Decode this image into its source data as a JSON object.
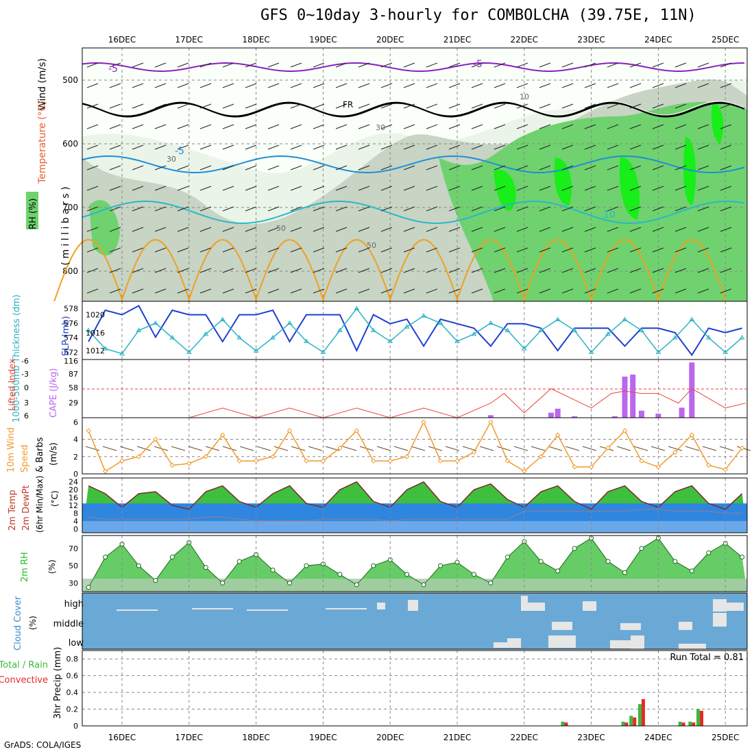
{
  "title": "GFS 0~10day 3-hourly for COMBOLCHA (39.75E, 11N)",
  "credit": "GrADS: COLA/IGES",
  "dates": [
    "16DEC",
    "17DEC",
    "18DEC",
    "19DEC",
    "20DEC",
    "21DEC",
    "22DEC",
    "23DEC",
    "24DEC",
    "25DEC"
  ],
  "colors": {
    "rh_light": "#eaf4e8",
    "rh_mid": "#c8d4c4",
    "rh_green": "#6fd26f",
    "rh_bright": "#18ee18",
    "slp": "#1d3fcf",
    "thickness": "#2ab3c2",
    "li": "#e8453c",
    "cape": "#bb66ee",
    "wind": "#ef9a2a",
    "temp_fill": "#3ebf3e",
    "temp_warm": "#f4f47a",
    "dew": "#1c7fdc",
    "rh2m": "#22c022",
    "cloud_bg": "#6aa9d6",
    "cloud_box": "#e6e6e6",
    "precip_total": "#3cb83c",
    "precip_conv": "#e82828"
  },
  "panels": {
    "upper": {
      "ylabel_wind": "Wind (m/s)",
      "ylabel_temp": "Temperature (°C)",
      "ylabel_rh": "RH (%)",
      "ylabel_mb": "( m i l l i b a r s )",
      "yticks": [
        "500",
        "600",
        "700",
        "800"
      ],
      "contour_labels": [
        "-5",
        "-5",
        "FR",
        "-5",
        "10",
        "30",
        "30",
        "10",
        "50",
        "50"
      ]
    },
    "slp": {
      "ylabel_left": "1000-500mb Thickness (dm)",
      "ylabel_right": "SLP (mb)",
      "yticks_left": [
        "578",
        "576",
        "574",
        "572"
      ],
      "yticks_right": [
        "1020",
        "1016",
        "1012"
      ]
    },
    "li": {
      "ylabel_left": "Lifted Index",
      "ylabel_right": "CAPE (J/kg)",
      "yticks_left": [
        "-6",
        "-3",
        "0",
        "3",
        "6"
      ],
      "yticks_right": [
        "116",
        "87",
        "58",
        "29"
      ]
    },
    "wind": {
      "ylabel_1": "10m Wind",
      "ylabel_2": "Speed",
      "ylabel_3": "& Barbs",
      "ylabel_4": "(m/s)",
      "yticks": [
        "6",
        "4",
        "2",
        "0"
      ]
    },
    "temp": {
      "ylabel_1": "2m Temp",
      "ylabel_2": "2m DewPt",
      "ylabel_3": "(6hr Min/Max)",
      "ylabel_4": "(°C)",
      "yticks": [
        "24",
        "20",
        "16",
        "12",
        "8",
        "4",
        "0"
      ]
    },
    "rh2m": {
      "ylabel_1": "2m RH",
      "ylabel_2": "(%)",
      "yticks": [
        "70",
        "50",
        "30"
      ]
    },
    "cloud": {
      "ylabel_1": "Cloud Cover",
      "ylabel_2": "(%)",
      "levels": [
        "high",
        "middle",
        "low"
      ]
    },
    "precip": {
      "ylabel_1": "Total / Rain",
      "ylabel_2": "Convective",
      "ylabel_3": "3hr Precip (mm)",
      "yticks": [
        "0.8",
        "0.6",
        "0.4",
        "0.2",
        "0"
      ],
      "run_total": "Run Total = 0.81"
    }
  },
  "chart_data": [
    {
      "type": "line",
      "name": "SLP",
      "title": "Sea level pressure (mb)",
      "ylim": [
        1010,
        1023
      ],
      "x_days": [
        15.5,
        15.75,
        16.0,
        16.25,
        16.5,
        16.75,
        17.0,
        17.25,
        17.5,
        17.75,
        18.0,
        18.25,
        18.5,
        18.75,
        19.0,
        19.25,
        19.5,
        19.75,
        20.0,
        20.25,
        20.5,
        20.75,
        21.0,
        21.25,
        21.5,
        21.75,
        22.0,
        22.25,
        22.5,
        22.75,
        23.0,
        23.25,
        23.5,
        23.75,
        24.0,
        24.25,
        24.5,
        24.75,
        25.0,
        25.25
      ],
      "values": [
        1014,
        1021,
        1020,
        1022,
        1015,
        1021,
        1020,
        1020,
        1014,
        1020,
        1020,
        1021,
        1014,
        1020,
        1020,
        1020,
        1012,
        1020,
        1018,
        1019,
        1013,
        1019,
        1018,
        1017,
        1013,
        1018,
        1018,
        1017,
        1012,
        1017,
        1017,
        1017,
        1013,
        1017,
        1017,
        1016,
        1011,
        1017,
        1016,
        1017
      ]
    },
    {
      "type": "line",
      "name": "1000-500mb Thickness",
      "ylim": [
        571,
        579
      ],
      "x_days": [
        15.5,
        15.75,
        16.0,
        16.25,
        16.5,
        16.75,
        17.0,
        17.25,
        17.5,
        17.75,
        18.0,
        18.25,
        18.5,
        18.75,
        19.0,
        19.25,
        19.5,
        19.75,
        20.0,
        20.25,
        20.5,
        20.75,
        21.0,
        21.25,
        21.5,
        21.75,
        22.0,
        22.25,
        22.5,
        22.75,
        23.0,
        23.25,
        23.5,
        23.75,
        24.0,
        24.25,
        24.5,
        24.75,
        25.0,
        25.25
      ],
      "values": [
        575,
        572.5,
        571.8,
        575,
        576,
        574,
        572,
        574.5,
        576.5,
        574,
        572.2,
        574,
        576,
        573.5,
        572,
        575,
        578,
        575,
        573.5,
        575.5,
        577,
        576,
        573.5,
        574.5,
        576,
        575,
        572.5,
        575,
        576.5,
        575,
        572,
        574.5,
        576.5,
        575,
        572,
        574,
        576.5,
        574,
        572,
        574
      ]
    },
    {
      "type": "line",
      "name": "Lifted Index",
      "ylim": [
        -6,
        6
      ],
      "x_days": [
        15.5,
        16.0,
        16.5,
        17.0,
        17.5,
        18.0,
        18.5,
        19.0,
        19.5,
        20.0,
        20.5,
        21.0,
        21.5,
        21.7,
        22.0,
        22.4,
        22.7,
        23.0,
        23.3,
        23.5,
        23.75,
        24.0,
        24.3,
        24.5,
        24.75,
        25.0,
        25.3
      ],
      "values": [
        6,
        6,
        6,
        6,
        4,
        6,
        4,
        6,
        4,
        6,
        4,
        6,
        3,
        1,
        5,
        0,
        2,
        4,
        1,
        0.5,
        1,
        1,
        3,
        0,
        2,
        4,
        3
      ]
    },
    {
      "type": "bar",
      "name": "CAPE",
      "ylim": [
        0,
        116
      ],
      "x_days": [
        21.5,
        22.4,
        22.5,
        22.75,
        23.35,
        23.5,
        23.62,
        23.75,
        24.0,
        24.35,
        24.5
      ],
      "values": [
        5,
        10,
        18,
        3,
        3,
        82,
        86,
        14,
        8,
        20,
        110
      ]
    },
    {
      "type": "line",
      "name": "10m Wind Speed",
      "ylim": [
        0,
        6
      ],
      "x_days": [
        15.5,
        15.75,
        16.0,
        16.25,
        16.5,
        16.75,
        17.0,
        17.25,
        17.5,
        17.75,
        18.0,
        18.25,
        18.5,
        18.75,
        19.0,
        19.25,
        19.5,
        19.75,
        20.0,
        20.25,
        20.5,
        20.75,
        21.0,
        21.25,
        21.5,
        21.75,
        22.0,
        22.25,
        22.5,
        22.75,
        23.0,
        23.25,
        23.5,
        23.75,
        24.0,
        24.25,
        24.5,
        24.75,
        25.0,
        25.25
      ],
      "values": [
        5,
        0.3,
        1.5,
        2,
        4,
        1,
        1.2,
        2,
        4.5,
        1.5,
        1.5,
        2,
        5,
        1.5,
        1.5,
        3,
        5,
        1.5,
        1.5,
        2,
        6,
        1.5,
        1.5,
        2.5,
        6,
        1.5,
        0.3,
        2,
        4.5,
        0.8,
        0.8,
        3,
        5,
        1.5,
        0.8,
        2.5,
        4.5,
        1,
        0.5,
        3
      ]
    },
    {
      "type": "area",
      "name": "2m Temp / DewPt",
      "ylim": [
        -2,
        26
      ],
      "x_days": [
        15.5,
        15.75,
        16.0,
        16.25,
        16.5,
        16.75,
        17.0,
        17.25,
        17.5,
        17.75,
        18.0,
        18.25,
        18.5,
        18.75,
        19.0,
        19.25,
        19.5,
        19.75,
        20.0,
        20.25,
        20.5,
        20.75,
        21.0,
        21.25,
        21.5,
        21.75,
        22.0,
        22.25,
        22.5,
        22.75,
        23.0,
        23.25,
        23.5,
        23.75,
        24.0,
        24.25,
        24.5,
        24.75,
        25.0,
        25.25
      ],
      "temp": [
        22,
        18,
        11,
        18,
        19,
        12,
        10,
        19,
        22,
        14,
        11,
        18,
        22,
        13,
        11,
        20,
        24,
        14,
        11,
        20,
        24,
        14,
        11,
        20,
        23,
        15,
        11,
        19,
        22,
        14,
        10,
        19,
        22,
        14,
        11,
        19,
        22,
        13,
        10,
        18
      ],
      "dewpt": [
        6,
        5,
        5,
        5,
        5,
        5,
        5,
        6,
        6,
        5,
        4,
        4,
        4,
        4,
        5,
        5,
        5,
        5,
        4,
        5,
        5,
        5,
        5,
        5,
        5,
        5,
        9,
        9,
        9,
        9,
        9,
        9,
        9,
        10,
        10,
        9,
        9,
        9,
        8,
        8
      ]
    },
    {
      "type": "area",
      "name": "2m RH",
      "ylim": [
        20,
        85
      ],
      "x_days": [
        15.5,
        15.75,
        16.0,
        16.25,
        16.5,
        16.75,
        17.0,
        17.25,
        17.5,
        17.75,
        18.0,
        18.25,
        18.5,
        18.75,
        19.0,
        19.25,
        19.5,
        19.75,
        20.0,
        20.25,
        20.5,
        20.75,
        21.0,
        21.25,
        21.5,
        21.75,
        22.0,
        22.25,
        22.5,
        22.75,
        23.0,
        23.25,
        23.5,
        23.75,
        24.0,
        24.25,
        24.5,
        24.75,
        25.0,
        25.25
      ],
      "values": [
        25,
        60,
        75,
        50,
        33,
        60,
        77,
        48,
        30,
        55,
        63,
        45,
        30,
        50,
        52,
        40,
        28,
        50,
        57,
        40,
        28,
        50,
        54,
        40,
        30,
        60,
        78,
        55,
        44,
        70,
        82,
        55,
        42,
        70,
        82,
        55,
        44,
        65,
        76,
        60
      ]
    },
    {
      "type": "bar",
      "name": "3hr Precip",
      "ylim": [
        0,
        0.9
      ],
      "x_days": [
        22.6,
        23.5,
        23.62,
        23.75,
        24.35,
        24.5,
        24.62
      ],
      "total": [
        0.05,
        0.05,
        0.12,
        0.26,
        0.05,
        0.05,
        0.2
      ],
      "convective": [
        0.04,
        0.04,
        0.1,
        0.32,
        0.04,
        0.04,
        0.18
      ],
      "run_total": 0.81
    }
  ]
}
